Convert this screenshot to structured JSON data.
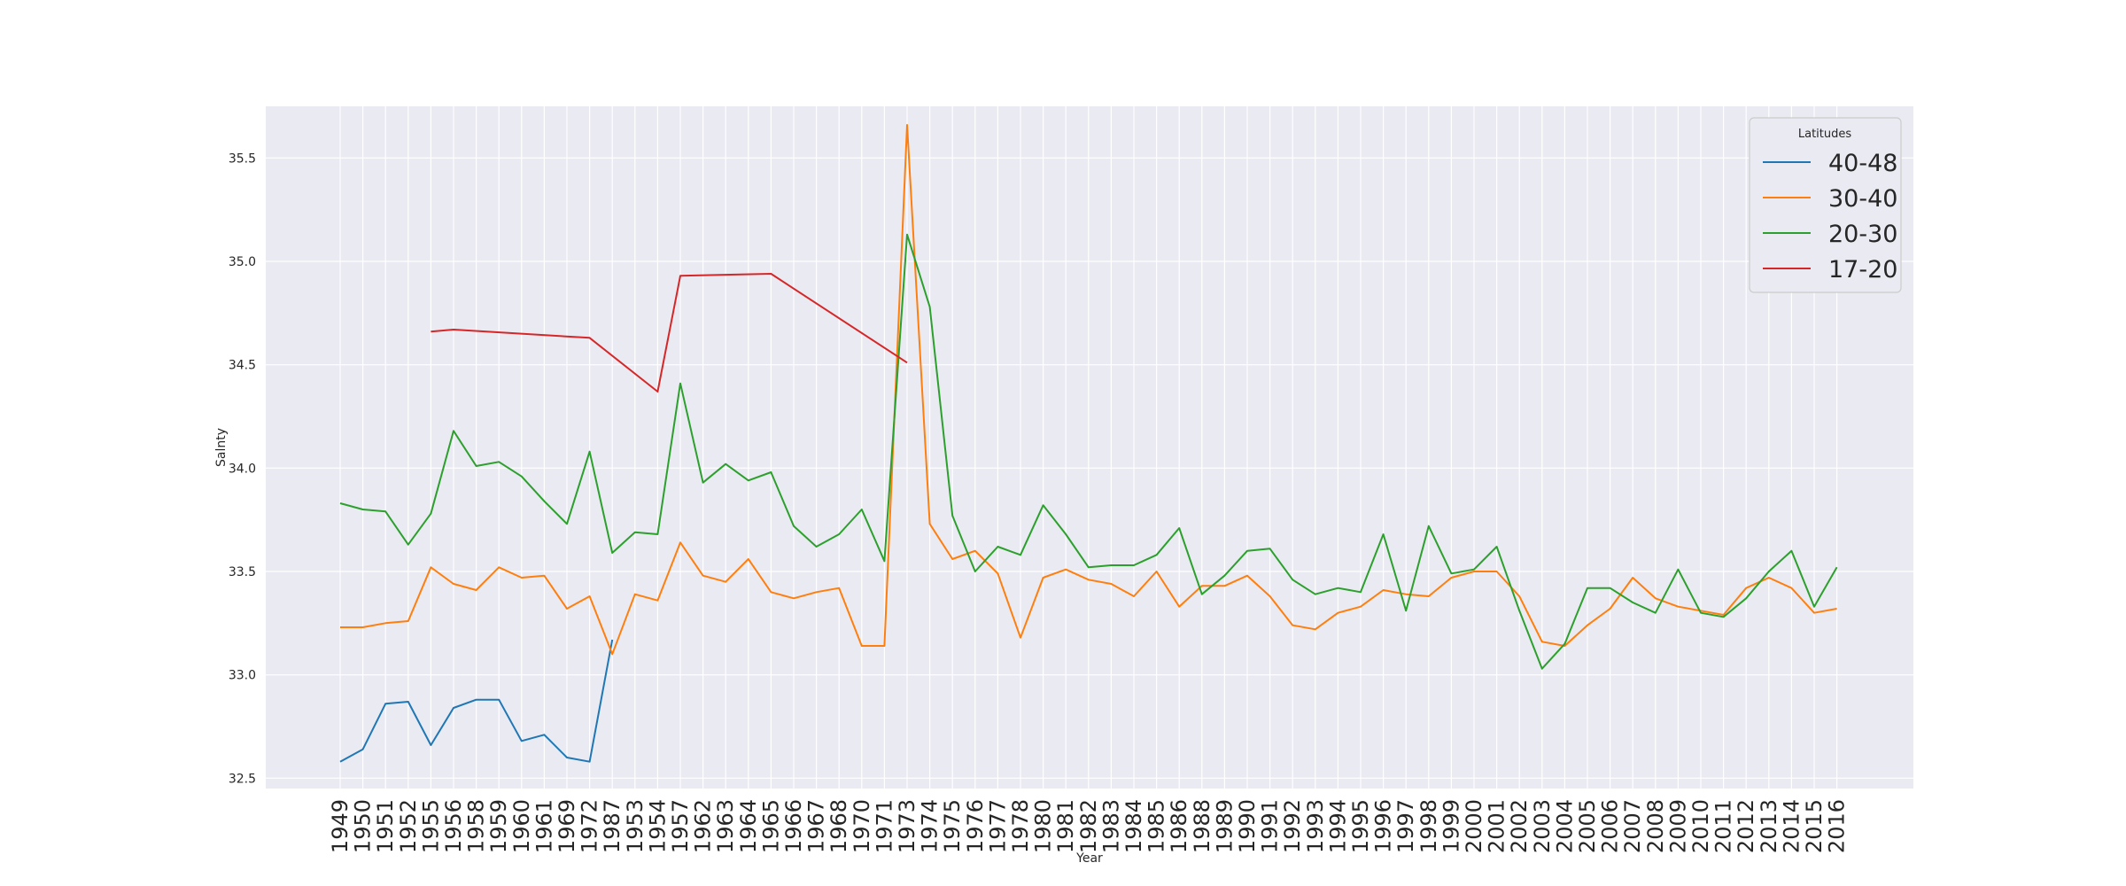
{
  "chart_data": {
    "type": "line",
    "xlabel": "Year",
    "ylabel": "Salnty",
    "ylim": [
      32.45,
      35.75
    ],
    "yticks": [
      32.5,
      33.0,
      33.5,
      34.0,
      34.5,
      35.0,
      35.5
    ],
    "ytick_labels": [
      "32.5",
      "33.0",
      "33.5",
      "34.0",
      "34.5",
      "35.0",
      "35.5"
    ],
    "grid": true,
    "legend": {
      "title": "Latitudes",
      "placement": "top-right"
    },
    "categories": [
      "1949",
      "1950",
      "1951",
      "1952",
      "1955",
      "1956",
      "1958",
      "1959",
      "1960",
      "1961",
      "1969",
      "1972",
      "1987",
      "1953",
      "1954",
      "1957",
      "1962",
      "1963",
      "1964",
      "1965",
      "1966",
      "1967",
      "1968",
      "1970",
      "1971",
      "1973",
      "1974",
      "1975",
      "1976",
      "1977",
      "1978",
      "1980",
      "1981",
      "1982",
      "1983",
      "1984",
      "1985",
      "1986",
      "1988",
      "1989",
      "1990",
      "1991",
      "1992",
      "1993",
      "1994",
      "1995",
      "1996",
      "1997",
      "1998",
      "1999",
      "2000",
      "2001",
      "2002",
      "2003",
      "2004",
      "2005",
      "2006",
      "2007",
      "2008",
      "2009",
      "2010",
      "2011",
      "2012",
      "2013",
      "2014",
      "2015",
      "2016"
    ],
    "series": [
      {
        "name": "40-48",
        "color": "#1f77b4",
        "values": [
          32.58,
          32.64,
          32.86,
          32.87,
          32.66,
          32.84,
          32.88,
          32.88,
          32.68,
          32.71,
          32.6,
          32.58,
          33.17,
          null,
          null,
          null,
          null,
          null,
          null,
          null,
          null,
          null,
          null,
          null,
          null,
          null,
          null,
          null,
          null,
          null,
          null,
          null,
          null,
          null,
          null,
          null,
          null,
          null,
          null,
          null,
          null,
          null,
          null,
          null,
          null,
          null,
          null,
          null,
          null,
          null,
          null,
          null,
          null,
          null,
          null,
          null,
          null,
          null,
          null,
          null,
          null,
          null,
          null,
          null,
          null,
          null,
          null
        ]
      },
      {
        "name": "30-40",
        "color": "#ff7f0e",
        "values": [
          33.23,
          33.23,
          33.25,
          33.26,
          33.52,
          33.44,
          33.41,
          33.52,
          33.47,
          33.48,
          33.32,
          33.38,
          33.1,
          33.39,
          33.36,
          33.64,
          33.48,
          33.45,
          33.56,
          33.4,
          33.37,
          33.4,
          33.42,
          33.14,
          33.14,
          35.66,
          33.73,
          33.56,
          33.6,
          33.49,
          33.18,
          33.47,
          33.51,
          33.46,
          33.44,
          33.38,
          33.5,
          33.33,
          33.43,
          33.43,
          33.48,
          33.38,
          33.24,
          33.22,
          33.3,
          33.33,
          33.41,
          33.39,
          33.38,
          33.47,
          33.5,
          33.5,
          33.38,
          33.16,
          33.14,
          33.24,
          33.32,
          33.47,
          33.37,
          33.33,
          33.31,
          33.29,
          33.42,
          33.47,
          33.42,
          33.3,
          33.32
        ]
      },
      {
        "name": "20-30",
        "color": "#2ca02c",
        "values": [
          33.83,
          33.8,
          33.79,
          33.63,
          33.78,
          34.18,
          34.01,
          34.03,
          33.96,
          33.84,
          33.73,
          34.08,
          33.59,
          33.69,
          33.68,
          34.41,
          33.93,
          34.02,
          33.94,
          33.98,
          33.72,
          33.62,
          33.68,
          33.8,
          33.55,
          35.13,
          34.78,
          33.77,
          33.5,
          33.62,
          33.58,
          33.82,
          33.68,
          33.52,
          33.53,
          33.53,
          33.58,
          33.71,
          33.39,
          33.48,
          33.6,
          33.61,
          33.46,
          33.39,
          33.42,
          33.4,
          33.68,
          33.31,
          33.72,
          33.49,
          33.51,
          33.62,
          33.31,
          33.03,
          33.15,
          33.42,
          33.42,
          33.35,
          33.3,
          33.51,
          33.3,
          33.28,
          33.37,
          33.5,
          33.6,
          33.33,
          33.52
        ]
      },
      {
        "name": "17-20",
        "color": "#d62728",
        "values": [
          null,
          null,
          null,
          null,
          34.66,
          34.67,
          null,
          null,
          null,
          null,
          null,
          34.63,
          null,
          null,
          34.37,
          34.93,
          null,
          null,
          null,
          34.94,
          null,
          null,
          null,
          null,
          null,
          34.51,
          null,
          null,
          null,
          null,
          null,
          null,
          null,
          null,
          null,
          null,
          null,
          null,
          null,
          null,
          null,
          null,
          null,
          null,
          null,
          null,
          null,
          null,
          null,
          null,
          null,
          null,
          null,
          null,
          null,
          null,
          null,
          null,
          null,
          null,
          null,
          null,
          null,
          null,
          null,
          null,
          null
        ]
      }
    ]
  }
}
